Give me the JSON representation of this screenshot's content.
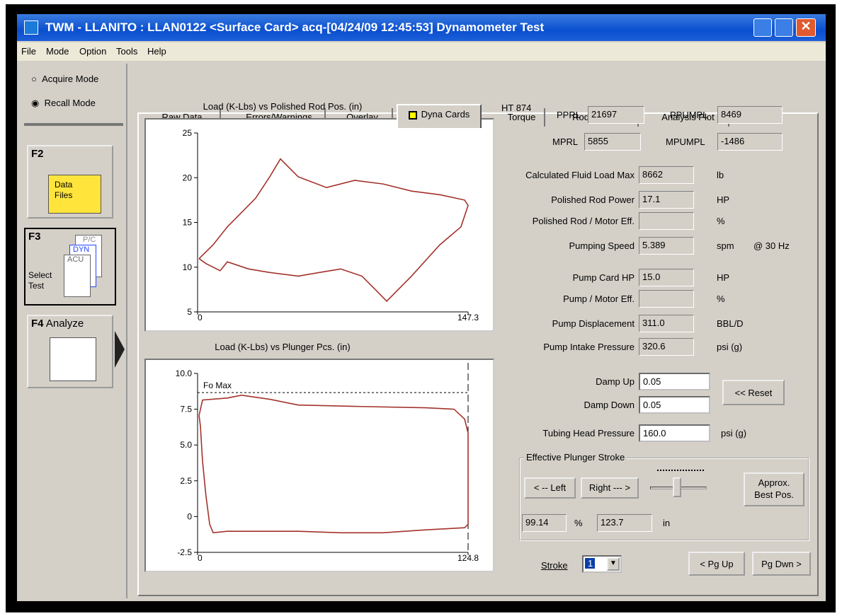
{
  "window": {
    "title": "TWM  -  LLANITO : LLAN0122  <Surface Card>  acq-[04/24/09 12:45:53]  Dynamometer Test"
  },
  "menu": [
    "File",
    "Mode",
    "Option",
    "Tools",
    "Help"
  ],
  "left_panel": {
    "modes": [
      "Acquire Mode",
      "Recall Mode"
    ],
    "buttons": [
      {
        "key": "F2",
        "label": [
          "Data",
          "Files"
        ]
      },
      {
        "key": "F3",
        "label": [
          "Select",
          "Test"
        ],
        "icons": [
          "P/C",
          "DYN",
          "ACU"
        ]
      },
      {
        "key": "F4",
        "label": [
          "Analyze"
        ]
      }
    ]
  },
  "tabs": [
    "Raw Data",
    "Errors/Warnings",
    "Overlay",
    "Dyna Cards",
    "Torque",
    "Rod Loading",
    "Analysis Plot"
  ],
  "selected_tab": 3,
  "charts": [
    {
      "title": "Load (K-Lbs) vs Polished Rod Pos. (in)",
      "color": "#a3322c",
      "xlim": [
        0,
        147.3
      ],
      "ylim": [
        5,
        25
      ],
      "xticks": [
        0,
        147.3
      ],
      "yticks": [
        5,
        10,
        15,
        20,
        25
      ],
      "x": [
        0.8,
        8.5,
        16.2,
        23.9,
        31.6,
        39.3,
        45.1,
        47.0,
        54.8,
        70.2,
        85.6,
        101.0,
        116.5,
        131.9,
        145.4,
        147.3,
        143.4,
        131.9,
        116.5,
        103.0,
        97.2,
        89.5,
        77.9,
        66.3,
        54.8,
        39.3,
        27.8,
        16.2,
        12.3,
        4.6,
        0.8
      ],
      "y": [
        10.95,
        12.5,
        14.5,
        16.1,
        17.7,
        20.1,
        22.1,
        21.7,
        20.1,
        18.9,
        19.7,
        19.3,
        18.5,
        18.1,
        17.5,
        16.9,
        14.5,
        12.5,
        9.0,
        6.2,
        7.4,
        9.0,
        9.8,
        9.4,
        9.0,
        9.4,
        9.8,
        10.6,
        9.6,
        10.4,
        10.95
      ]
    },
    {
      "title": "Load (K-Lbs) vs Plunger Pcs. (in)",
      "color": "#a3322c",
      "xlim": [
        0,
        124.8
      ],
      "ylim": [
        -2.5,
        10
      ],
      "xticks": [
        0,
        124.8
      ],
      "yticks": [
        {
          "value": 10,
          "label": "10.0"
        },
        {
          "value": 7.5,
          "label": "7.5"
        },
        {
          "value": 5,
          "label": "5.0"
        },
        {
          "value": 2.5,
          "label": "2.5"
        },
        0,
        {
          "value": -2.5,
          "label": "-2.5"
        }
      ],
      "fo_max": {
        "label": "Fo Max",
        "value": 8.66
      },
      "x": [
        0.7,
        2.3,
        13.7,
        20.3,
        33.3,
        46.4,
        72.5,
        105.2,
        118.3,
        123.2,
        124.8,
        124.8,
        123.2,
        105.2,
        85.6,
        66.0,
        46.4,
        26.8,
        13.7,
        7.2,
        5.6,
        3.9,
        2.3,
        1.3,
        0.7
      ],
      "y": [
        7.06,
        8.14,
        8.28,
        8.48,
        8.19,
        7.79,
        7.7,
        7.6,
        7.5,
        6.81,
        5.83,
        -0.54,
        -0.78,
        -0.93,
        -1.13,
        -1.13,
        -1.03,
        -1.03,
        -1.03,
        -1.13,
        -0.54,
        1.42,
        3.87,
        6.32,
        7.06
      ]
    }
  ],
  "header": {
    "well": "HT 874",
    "fields": [
      {
        "label": "PPRL",
        "value": "21697"
      },
      {
        "label": "PPUMPL",
        "value": "8469"
      },
      {
        "label": "MPRL",
        "value": "5855"
      },
      {
        "label": "MPUMPL",
        "value": "-1486"
      }
    ]
  },
  "fields": [
    {
      "label": "Calculated Fluid Load Max",
      "value": "8662",
      "unit": "lb"
    },
    {
      "label": "Polished Rod Power",
      "value": "17.1",
      "unit": "HP"
    },
    {
      "label": "Polished Rod / Motor Eff.",
      "value": "",
      "unit": "%"
    },
    {
      "label": "Pumping Speed",
      "value": "5.389",
      "unit": "spm",
      "extra": "@ 30 Hz"
    },
    {
      "label": "Pump Card HP",
      "value": "15.0",
      "unit": "HP"
    },
    {
      "label": "Pump / Motor Eff.",
      "value": "",
      "unit": "%"
    },
    {
      "label": "Pump Displacement",
      "value": "311.0",
      "unit": "BBL/D"
    },
    {
      "label": "Pump Intake Pressure",
      "value": "320.6",
      "unit": "psi (g)"
    }
  ],
  "damp": [
    {
      "label": "Damp Up",
      "value": "0.05"
    },
    {
      "label": "Damp Down",
      "value": "0.05"
    }
  ],
  "reset": "<< Reset",
  "tubing": {
    "label": "Tubing Head Pressure",
    "value": "160.0",
    "unit": "psi (g)"
  },
  "stroke_group": {
    "title": "Effective Plunger Stroke",
    "left": "< -- Left",
    "right": "Right --- >",
    "best": [
      "Approx.",
      "Best Pos."
    ],
    "percent": "99.14",
    "percent_unit": "%",
    "inches": "123.7",
    "inches_unit": "in"
  },
  "stroke": {
    "label": "Stroke",
    "value": "1"
  },
  "paging": [
    "< Pg Up",
    "Pg Dwn >"
  ]
}
